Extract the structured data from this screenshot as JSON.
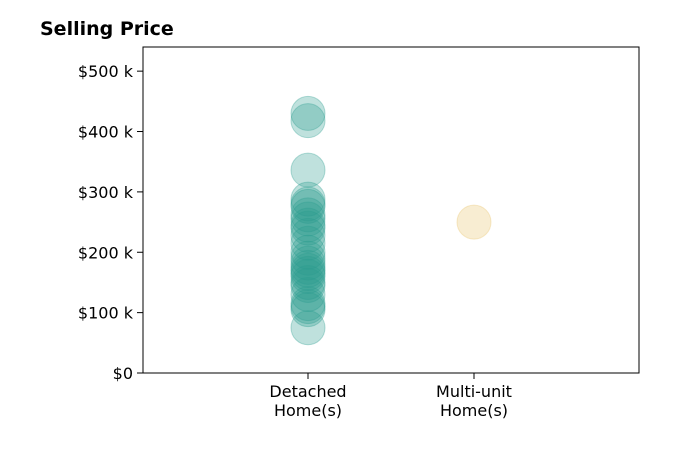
{
  "chart_data": {
    "type": "scatter",
    "title": "Selling Price",
    "categories": [
      "Detached\nHome(s)",
      "Multi-unit\nHome(s)"
    ],
    "ylim": [
      0,
      540000
    ],
    "yticks": [
      0,
      100000,
      200000,
      300000,
      400000,
      500000
    ],
    "ytick_labels": [
      "$0",
      "$100 k",
      "$200 k",
      "$300 k",
      "$400 k",
      "$500 k"
    ],
    "grid": false,
    "series": [
      {
        "category": "Detached\nHome(s)",
        "color": "#2a9d8f",
        "values": [
          430000,
          418000,
          336000,
          288000,
          280000,
          276000,
          262000,
          255000,
          245000,
          240000,
          228000,
          215000,
          200000,
          190000,
          182000,
          175000,
          170000,
          165000,
          160000,
          150000,
          145000,
          130000,
          115000,
          110000,
          105000,
          75000
        ]
      },
      {
        "category": "Multi-unit\nHome(s)",
        "color": "#e9c46a",
        "values": [
          250000
        ]
      }
    ]
  }
}
